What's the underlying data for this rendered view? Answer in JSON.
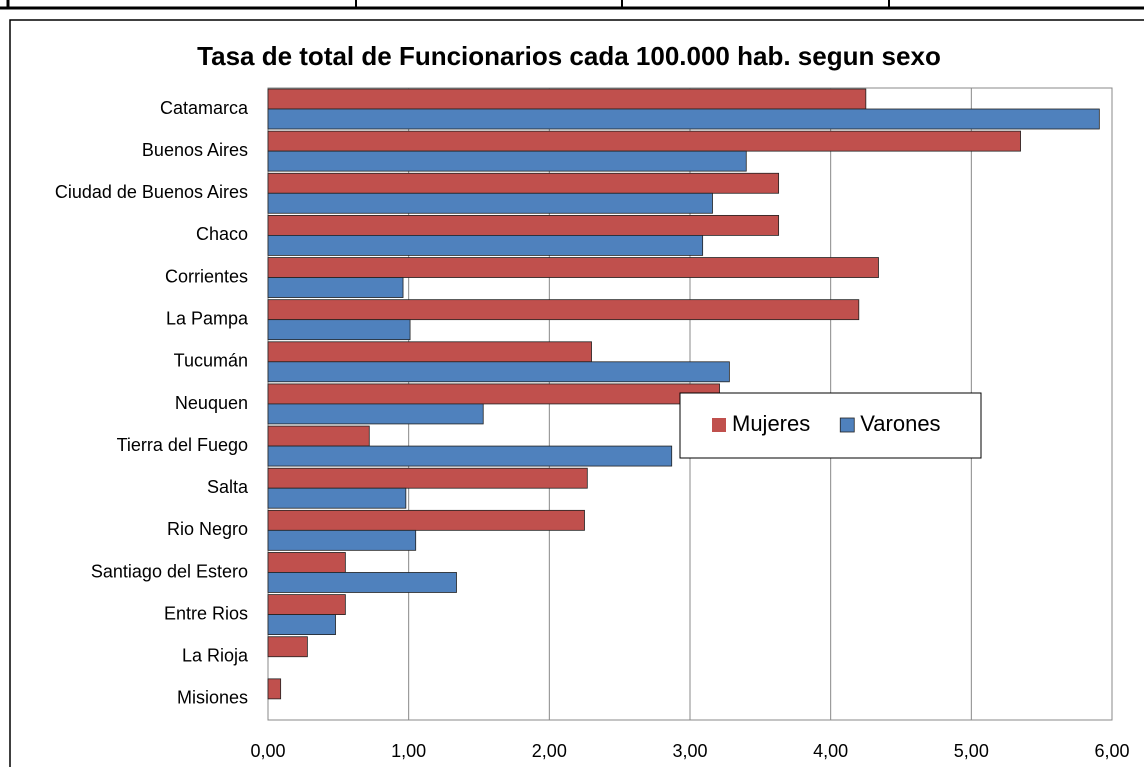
{
  "chart_data": {
    "type": "hbar",
    "title": "Tasa de total de Funcionarios cada 100.000 hab. segun sexo",
    "categories": [
      "Catamarca",
      "Buenos Aires",
      "Ciudad de Buenos Aires",
      "Chaco",
      "Corrientes",
      "La Pampa",
      "Tucumán",
      "Neuquen",
      "Tierra del Fuego",
      "Salta",
      "Rio Negro",
      "Santiago del Estero",
      "Entre Rios",
      "La Rioja",
      "Misiones"
    ],
    "series": [
      {
        "name": "Mujeres",
        "color": "#c0504d",
        "values": [
          4.25,
          5.35,
          3.63,
          3.63,
          4.34,
          4.2,
          2.3,
          3.21,
          0.72,
          2.27,
          2.25,
          0.55,
          0.55,
          0.28,
          0.09
        ]
      },
      {
        "name": "Varones",
        "color": "#4f81bd",
        "values": [
          5.91,
          3.4,
          3.16,
          3.09,
          0.96,
          1.01,
          3.28,
          1.53,
          2.87,
          0.98,
          1.05,
          1.34,
          0.48,
          0,
          0
        ]
      }
    ],
    "xlim": [
      0,
      6
    ],
    "xticks": [
      {
        "value": 0,
        "label": "0,00"
      },
      {
        "value": 1,
        "label": "1,00"
      },
      {
        "value": 2,
        "label": "2,00"
      },
      {
        "value": 3,
        "label": "3,00"
      },
      {
        "value": 4,
        "label": "4,00"
      },
      {
        "value": 5,
        "label": "5,00"
      },
      {
        "value": 6,
        "label": "6,00"
      }
    ],
    "grid": true
  }
}
